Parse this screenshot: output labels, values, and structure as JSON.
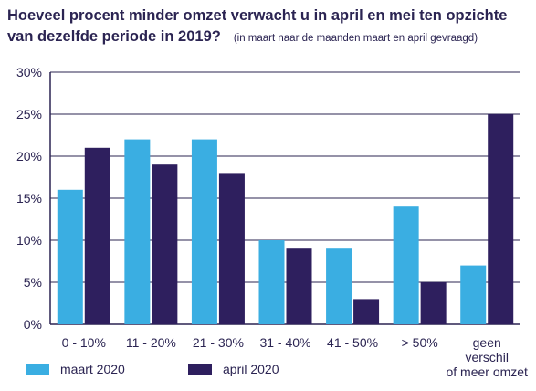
{
  "title_line1": "Hoeveel procent minder omzet verwacht u in april en mei ten opzichte",
  "title_line2": "van dezelfde periode in 2019?",
  "subtitle": "(in maart naar de maanden maart en april gevraagd)",
  "chart_data": {
    "type": "bar",
    "categories": [
      [
        "0 - 10%"
      ],
      [
        "11 - 20%"
      ],
      [
        "21 - 30%"
      ],
      [
        "31 - 40%"
      ],
      [
        "41 - 50%"
      ],
      [
        "> 50%"
      ],
      [
        "geen",
        "verschil",
        "of meer omzet"
      ]
    ],
    "series": [
      {
        "name": "maart 2020",
        "color": "#3aaee2",
        "values": [
          16,
          22,
          22,
          10,
          9,
          14,
          7
        ]
      },
      {
        "name": "april 2020",
        "color": "#2e1f5e",
        "values": [
          21,
          19,
          18,
          9,
          3,
          5,
          25
        ]
      }
    ],
    "y_ticks": [
      "0%",
      "5%",
      "10%",
      "15%",
      "20%",
      "25%",
      "30%"
    ],
    "ylim": [
      0,
      30
    ],
    "grid": true,
    "legend_position": "bottom-left"
  }
}
